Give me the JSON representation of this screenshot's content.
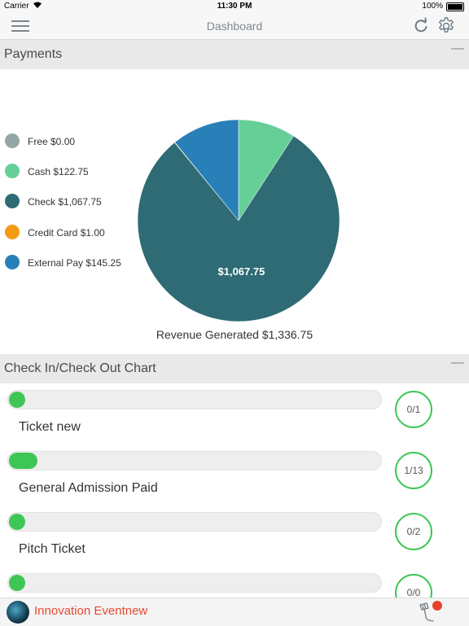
{
  "status_bar": {
    "carrier": "Carrier",
    "time": "11:30 PM",
    "battery": "100%"
  },
  "nav": {
    "title": "Dashboard",
    "menu_icon": "hamburger-icon",
    "refresh_icon": "refresh-icon",
    "settings_icon": "gear-icon"
  },
  "payments": {
    "header": "Payments",
    "collapse_symbol": "—",
    "legend": [
      {
        "label": "Free $0.00",
        "color": "#95a5a6"
      },
      {
        "label": "Cash $122.75",
        "color": "#66cf98"
      },
      {
        "label": "Check $1,067.75",
        "color": "#2e6b75"
      },
      {
        "label": "Credit Card $1.00",
        "color": "#f39c12"
      },
      {
        "label": "External Pay $145.25",
        "color": "#2980b9"
      }
    ],
    "pie_label": "$1,067.75",
    "revenue": "Revenue Generated $1,336.75"
  },
  "chart_data": {
    "type": "pie",
    "categories": [
      "Free",
      "Cash",
      "Check",
      "Credit Card",
      "External Pay"
    ],
    "values": [
      0.0,
      122.75,
      1067.75,
      1.0,
      145.25
    ],
    "colors": [
      "#95a5a6",
      "#66cf98",
      "#2e6b75",
      "#f39c12",
      "#2980b9"
    ],
    "labeled_slice": "Check",
    "slice_label": "$1,067.75"
  },
  "checkin": {
    "header": "Check In/Check Out Chart",
    "collapse_symbol": "—",
    "tickets": [
      {
        "name": "Ticket new",
        "count": "0/1",
        "progress": 0
      },
      {
        "name": "General Admission Paid",
        "count": "1/13",
        "progress": 0.077
      },
      {
        "name": "Pitch Ticket",
        "count": "0/2",
        "progress": 0
      },
      {
        "name": "",
        "count": "0/0",
        "progress": 0
      }
    ],
    "accent": "#3dc655"
  },
  "footer": {
    "event_name": "Innovation Eventnew",
    "event_color": "#e64a2e",
    "scanner_icon": "barcode-scanner-icon",
    "notification_color": "#e8412f"
  }
}
